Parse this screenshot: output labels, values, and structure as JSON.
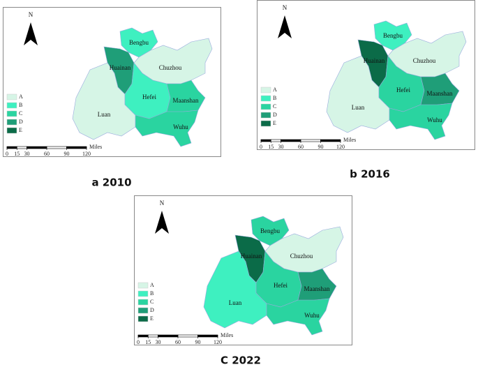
{
  "legend": [
    {
      "label": "A",
      "color": "#d6f5e6"
    },
    {
      "label": "B",
      "color": "#3ef0c0"
    },
    {
      "label": "C",
      "color": "#2ad4a0"
    },
    {
      "label": "D",
      "color": "#1f9e78"
    },
    {
      "label": "E",
      "color": "#0b6b48"
    }
  ],
  "north": "N",
  "scale": {
    "ticks": [
      0,
      15,
      30,
      60,
      90,
      120
    ],
    "unit": "Miles"
  },
  "maps": [
    {
      "caption": "a 2010",
      "regions": [
        {
          "name": "Bengbu",
          "grade": "B"
        },
        {
          "name": "Huainan",
          "grade": "D"
        },
        {
          "name": "Chuzhou",
          "grade": "A"
        },
        {
          "name": "Luan",
          "grade": "A"
        },
        {
          "name": "Hefei",
          "grade": "B"
        },
        {
          "name": "Maanshan",
          "grade": "C"
        },
        {
          "name": "Wuhu",
          "grade": "C"
        }
      ]
    },
    {
      "caption": "b 2016",
      "regions": [
        {
          "name": "Bengbu",
          "grade": "B"
        },
        {
          "name": "Huainan",
          "grade": "E"
        },
        {
          "name": "Chuzhou",
          "grade": "A"
        },
        {
          "name": "Luan",
          "grade": "A"
        },
        {
          "name": "Hefei",
          "grade": "C"
        },
        {
          "name": "Maanshan",
          "grade": "D"
        },
        {
          "name": "Wuhu",
          "grade": "C"
        }
      ]
    },
    {
      "caption": "C 2022",
      "regions": [
        {
          "name": "Bengbu",
          "grade": "C"
        },
        {
          "name": "Huainan",
          "grade": "E"
        },
        {
          "name": "Chuzhou",
          "grade": "A"
        },
        {
          "name": "Luan",
          "grade": "B"
        },
        {
          "name": "Hefei",
          "grade": "C"
        },
        {
          "name": "Maanshan",
          "grade": "D"
        },
        {
          "name": "Wuhu",
          "grade": "C"
        }
      ]
    }
  ]
}
